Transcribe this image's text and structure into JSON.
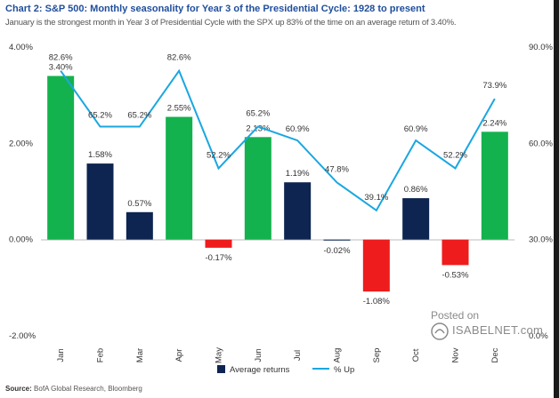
{
  "header": {
    "title": "Chart 2: S&P 500: Monthly seasonality for Year 3 of the Presidential Cycle: 1928 to present",
    "subtitle": "January is the strongest month in Year 3 of Presidential Cycle with the SPX up 83% of the time on an average return of 3.40%."
  },
  "footer": {
    "source_label": "Source:",
    "source_text": "BofA Global Research, Bloomberg"
  },
  "watermark": {
    "posted": "Posted on",
    "site": "ISABELNET.com"
  },
  "colors": {
    "up_month": "#13b24e",
    "normal_bar": "#0d2550",
    "down_month": "#ee1c1c",
    "pct_up_line": "#1aa7e0"
  },
  "chart_data": {
    "type": "bar",
    "categories": [
      "Jan",
      "Feb",
      "Mar",
      "Apr",
      "May",
      "Jun",
      "Jul",
      "Aug",
      "Sep",
      "Oct",
      "Nov",
      "Dec"
    ],
    "series": [
      {
        "name": "Average returns",
        "axis": "left",
        "values": [
          3.4,
          1.58,
          0.57,
          2.55,
          -0.17,
          2.13,
          1.19,
          -0.02,
          -1.08,
          0.86,
          -0.53,
          2.24
        ],
        "labels": [
          "3.40%",
          "1.58%",
          "0.57%",
          "2.55%",
          "-0.17%",
          "2.13%",
          "1.19%",
          "-0.02%",
          "-1.08%",
          "0.86%",
          "-0.53%",
          "2.24%"
        ],
        "bar_colors": [
          "green",
          "navy",
          "navy",
          "green",
          "red",
          "green",
          "navy",
          "navy",
          "red",
          "navy",
          "red",
          "green"
        ]
      },
      {
        "name": "% Up",
        "axis": "right",
        "type": "line",
        "values": [
          82.6,
          65.2,
          65.2,
          82.6,
          52.2,
          65.2,
          60.9,
          47.8,
          39.1,
          60.9,
          52.2,
          73.9
        ],
        "labels": [
          "82.6%",
          "65.2%",
          "65.2%",
          "82.6%",
          "52.2%",
          "65.2%",
          "60.9%",
          "47.8%",
          "39.1%",
          "60.9%",
          "52.2%",
          "73.9%"
        ]
      }
    ],
    "left_axis": {
      "range": [
        -2.0,
        4.0
      ],
      "ticks": [
        4.0,
        2.0,
        0.0,
        -2.0
      ],
      "tick_labels": [
        "4.00%",
        "2.00%",
        "0.00%",
        "-2.00%"
      ]
    },
    "right_axis": {
      "range": [
        0.0,
        90.0
      ],
      "ticks": [
        90.0,
        60.0,
        30.0,
        0.0
      ],
      "tick_labels": [
        "90.0%",
        "60.0%",
        "30.0%",
        "0.0%"
      ]
    },
    "legend": [
      "Average returns",
      "% Up"
    ],
    "grid": false
  }
}
